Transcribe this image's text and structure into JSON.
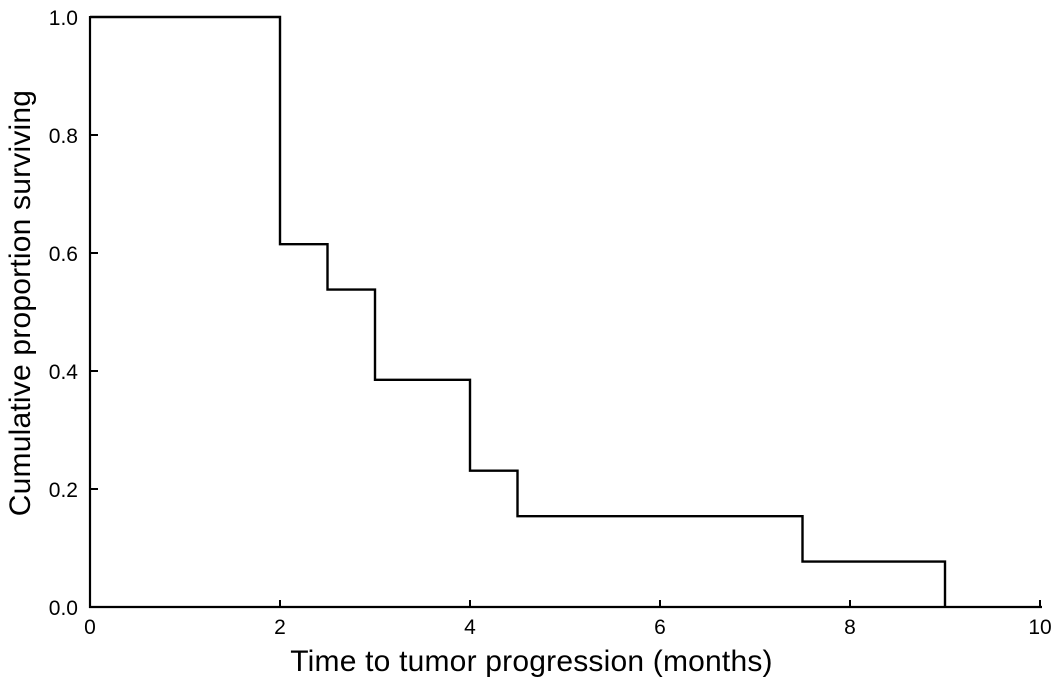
{
  "chart_data": {
    "type": "line",
    "subtype": "kaplan-meier-step-survival-curve",
    "title": "",
    "xlabel": "Time to tumor progression (months)",
    "ylabel": "Cumulative proportion surviving",
    "xlim": [
      0,
      10
    ],
    "ylim": [
      0.0,
      1.0
    ],
    "x_ticks": {
      "values": [
        0,
        2,
        4,
        6,
        8,
        10
      ],
      "labels": [
        "0",
        "2",
        "4",
        "6",
        "8",
        "10"
      ]
    },
    "y_ticks": {
      "values": [
        0.0,
        0.2,
        0.4,
        0.6,
        0.8,
        1.0
      ],
      "labels": [
        "0.0",
        "0.2",
        "0.4",
        "0.6",
        "0.8",
        "1.0"
      ]
    },
    "grid": false,
    "legend": false,
    "tick_direction": "in",
    "line_color": "#000000",
    "axis_color": "#000000",
    "background_color": "#ffffff",
    "series": [
      {
        "name": "Cumulative proportion surviving",
        "steps": [
          {
            "from": 0,
            "to": 2,
            "surviving": 1.0
          },
          {
            "from": 2,
            "to": 2.5,
            "surviving": 0.615
          },
          {
            "from": 2.5,
            "to": 3,
            "surviving": 0.538
          },
          {
            "from": 3,
            "to": 4,
            "surviving": 0.385
          },
          {
            "from": 4,
            "to": 4.5,
            "surviving": 0.231
          },
          {
            "from": 4.5,
            "to": 7.5,
            "surviving": 0.154
          },
          {
            "from": 7.5,
            "to": 9,
            "surviving": 0.077
          },
          {
            "from": 9,
            "to": 9,
            "surviving": 0.0
          }
        ]
      }
    ]
  }
}
